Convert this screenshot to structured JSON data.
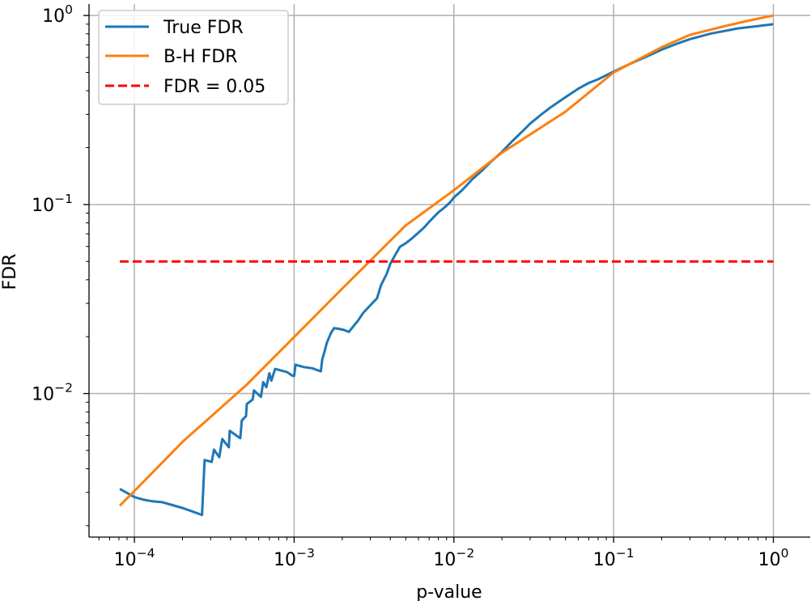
{
  "chart_data": {
    "type": "line",
    "xlabel": "p-value",
    "ylabel": "FDR",
    "xscale": "log",
    "yscale": "log",
    "xlim": [
      5.2e-05,
      1.7
    ],
    "ylim": [
      0.00174,
      1.15
    ],
    "grid": true,
    "legend_position": "top-left",
    "x_ticks": [
      {
        "value": 0.0001,
        "base": "10",
        "exp": "−4"
      },
      {
        "value": 0.001,
        "base": "10",
        "exp": "−3"
      },
      {
        "value": 0.01,
        "base": "10",
        "exp": "−2"
      },
      {
        "value": 0.1,
        "base": "10",
        "exp": "−1"
      },
      {
        "value": 1,
        "base": "10",
        "exp": "0"
      }
    ],
    "y_ticks": [
      {
        "value": 0.01,
        "base": "10",
        "exp": "−2"
      },
      {
        "value": 0.1,
        "base": "10",
        "exp": "−1"
      },
      {
        "value": 1,
        "base": "10",
        "exp": "0"
      }
    ],
    "series": [
      {
        "name": "True FDR",
        "color": "#1f77b4",
        "style": "solid",
        "x": [
          8.1e-05,
          9e-05,
          0.0001,
          0.000115,
          0.00013,
          0.00015,
          0.00017,
          0.0002,
          0.00023,
          0.000265,
          0.000275,
          0.000305,
          0.000315,
          0.00034,
          0.000355,
          0.00039,
          0.000395,
          0.00046,
          0.00047,
          0.0005,
          0.000505,
          0.00055,
          0.00056,
          0.00062,
          0.00064,
          0.00067,
          0.0007,
          0.00072,
          0.00076,
          0.0009,
          0.00098,
          0.001,
          0.00102,
          0.00115,
          0.0013,
          0.00147,
          0.0015,
          0.00155,
          0.0016,
          0.0017,
          0.00178,
          0.0019,
          0.00205,
          0.0022,
          0.0025,
          0.0027,
          0.003,
          0.0033,
          0.0035,
          0.0038,
          0.004,
          0.0043,
          0.0046,
          0.005,
          0.0055,
          0.006,
          0.0065,
          0.007,
          0.0075,
          0.008,
          0.0088,
          0.0095,
          0.01,
          0.011,
          0.012,
          0.013,
          0.015,
          0.017,
          0.02,
          0.023,
          0.027,
          0.03,
          0.035,
          0.04,
          0.05,
          0.06,
          0.07,
          0.08,
          0.1,
          0.13,
          0.17,
          0.2,
          0.25,
          0.3,
          0.4,
          0.5,
          0.6,
          0.8,
          1.0
        ],
        "y": [
          0.00313,
          0.00298,
          0.00283,
          0.00274,
          0.00269,
          0.00266,
          0.00258,
          0.00248,
          0.00238,
          0.00228,
          0.00445,
          0.00435,
          0.00505,
          0.0046,
          0.00575,
          0.0052,
          0.00635,
          0.0058,
          0.0072,
          0.0076,
          0.0088,
          0.0093,
          0.0104,
          0.0096,
          0.0115,
          0.0108,
          0.0128,
          0.0117,
          0.0135,
          0.013,
          0.0124,
          0.0124,
          0.0142,
          0.0138,
          0.0136,
          0.0131,
          0.0152,
          0.0167,
          0.0185,
          0.0209,
          0.0222,
          0.022,
          0.0217,
          0.0212,
          0.0242,
          0.0267,
          0.0293,
          0.0319,
          0.0375,
          0.043,
          0.0486,
          0.0542,
          0.0598,
          0.0624,
          0.0665,
          0.071,
          0.0755,
          0.081,
          0.086,
          0.091,
          0.097,
          0.103,
          0.109,
          0.117,
          0.126,
          0.136,
          0.151,
          0.168,
          0.19,
          0.215,
          0.245,
          0.268,
          0.298,
          0.325,
          0.37,
          0.41,
          0.44,
          0.46,
          0.505,
          0.56,
          0.62,
          0.66,
          0.71,
          0.75,
          0.8,
          0.83,
          0.855,
          0.88,
          0.9
        ]
      },
      {
        "name": "B-H FDR",
        "color": "#ff7f0e",
        "style": "solid",
        "x": [
          8.1e-05,
          0.0001,
          0.0002,
          0.0005,
          0.001,
          0.002,
          0.005,
          0.01,
          0.02,
          0.05,
          0.1,
          0.2,
          0.3,
          0.5,
          0.7,
          1.0
        ],
        "y": [
          0.00255,
          0.00305,
          0.00555,
          0.01105,
          0.0199,
          0.0359,
          0.0776,
          0.119,
          0.188,
          0.31,
          0.5,
          0.68,
          0.79,
          0.88,
          0.94,
          1.0
        ]
      },
      {
        "name": "FDR = 0.05",
        "color": "#ff0000",
        "style": "dashed",
        "x": [
          8.1e-05,
          1.0
        ],
        "y": [
          0.05,
          0.05
        ]
      }
    ]
  }
}
